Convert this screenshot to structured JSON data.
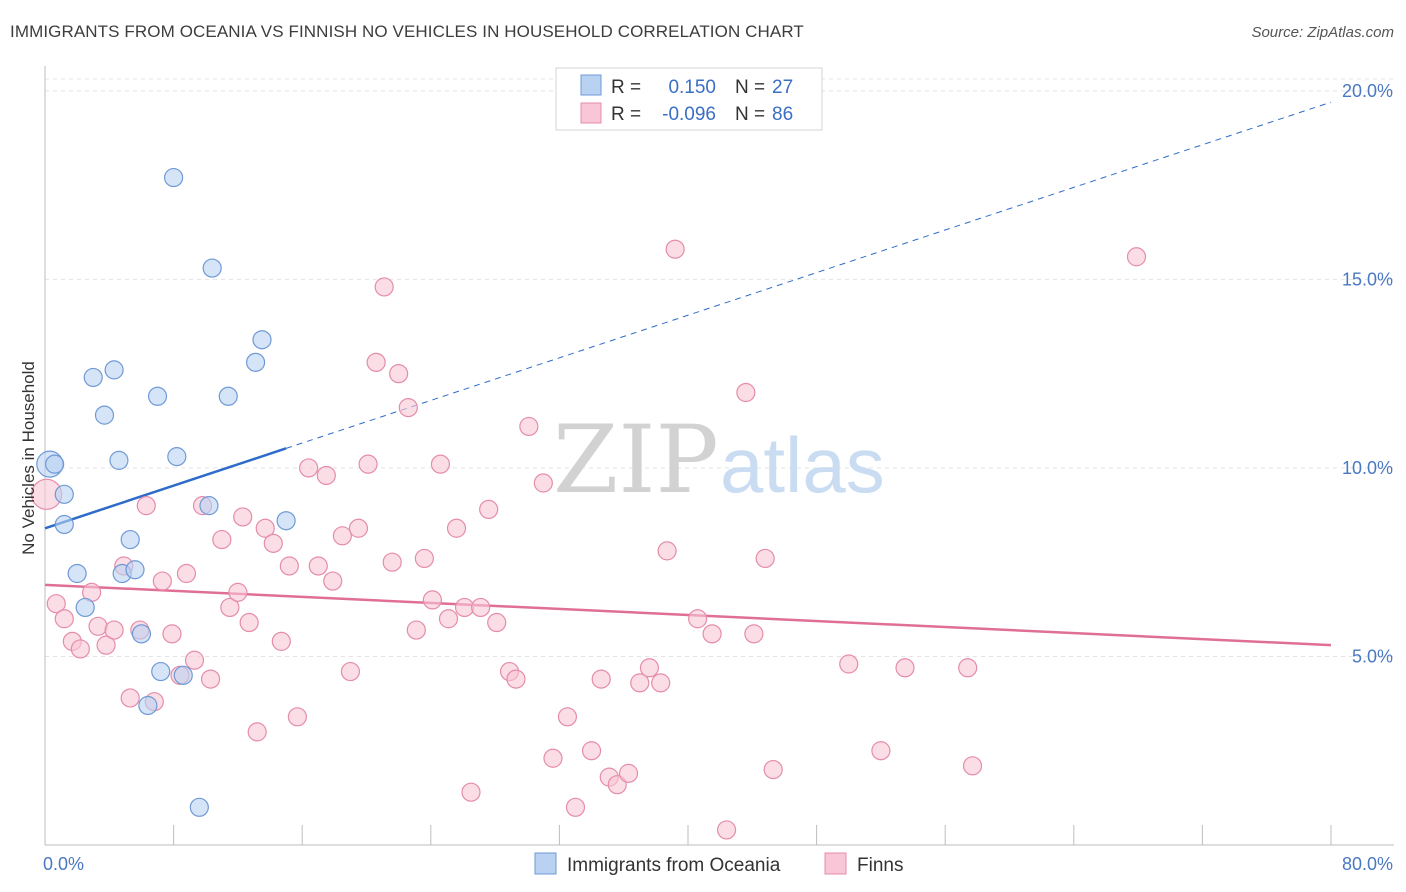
{
  "title": "IMMIGRANTS FROM OCEANIA VS FINNISH NO VEHICLES IN HOUSEHOLD CORRELATION CHART",
  "source": "Source: ZipAtlas.com",
  "watermark": {
    "zip": "ZIP",
    "atlas": "atlas"
  },
  "colors": {
    "blue_fill": "#b9d2f2",
    "blue_stroke": "#6f9ad6",
    "blue_line": "#2f6cc9",
    "pink_fill": "#f8c6d6",
    "pink_stroke": "#e58cab",
    "pink_line": "#e06f96",
    "tick_label": "#4a78c2",
    "grid": "#e4e4e4"
  },
  "legend": {
    "rows": [
      {
        "r_label": "R =",
        "r_value": "0.150",
        "n_label": "N =",
        "n_value": "27"
      },
      {
        "r_label": "R =",
        "r_value": "-0.096",
        "n_label": "N =",
        "n_value": "86"
      }
    ]
  },
  "chart_data": {
    "type": "scatter",
    "xlabel": "",
    "ylabel": "No Vehicles in Household",
    "xlim": [
      0,
      80
    ],
    "ylim": [
      0,
      20.5
    ],
    "x_tick_labels": [
      "0.0%",
      "80.0%"
    ],
    "y_ticks": [
      5,
      10,
      15,
      20
    ],
    "y_tick_labels": [
      "5.0%",
      "10.0%",
      "15.0%",
      "20.0%"
    ],
    "grid": true,
    "legend_position": "top-center",
    "series": [
      {
        "name": "Immigrants from Oceania",
        "color": "blue",
        "R": 0.15,
        "N": 27,
        "trend": {
          "x0": 0,
          "y0": 8.4,
          "x1": 80,
          "y1": 19.7,
          "solid_until_x": 15
        },
        "points": [
          [
            0.3,
            10.1,
            13
          ],
          [
            0.6,
            10.1,
            9
          ],
          [
            1.2,
            9.3,
            9
          ],
          [
            1.2,
            8.5,
            9
          ],
          [
            2.0,
            7.2,
            9
          ],
          [
            2.5,
            6.3,
            9
          ],
          [
            3.0,
            12.4,
            9
          ],
          [
            3.7,
            11.4,
            9
          ],
          [
            4.3,
            12.6,
            9
          ],
          [
            4.6,
            10.2,
            9
          ],
          [
            4.8,
            7.2,
            9
          ],
          [
            5.3,
            8.1,
            9
          ],
          [
            5.6,
            7.3,
            9
          ],
          [
            6.0,
            5.6,
            9
          ],
          [
            6.4,
            3.7,
            9
          ],
          [
            7.0,
            11.9,
            9
          ],
          [
            7.2,
            4.6,
            9
          ],
          [
            8.0,
            17.7,
            9
          ],
          [
            8.2,
            10.3,
            9
          ],
          [
            8.6,
            4.5,
            9
          ],
          [
            9.6,
            1.0,
            9
          ],
          [
            10.2,
            9.0,
            9
          ],
          [
            10.4,
            15.3,
            9
          ],
          [
            11.4,
            11.9,
            9
          ],
          [
            13.1,
            12.8,
            9
          ],
          [
            13.5,
            13.4,
            9
          ],
          [
            15.0,
            8.6,
            9
          ]
        ]
      },
      {
        "name": "Finns",
        "color": "pink",
        "R": -0.096,
        "N": 86,
        "trend": {
          "x0": 0,
          "y0": 6.9,
          "x1": 80,
          "y1": 5.3
        },
        "points": [
          [
            0.1,
            9.3,
            15
          ],
          [
            0.7,
            6.4,
            9
          ],
          [
            1.2,
            6.0,
            9
          ],
          [
            1.7,
            5.4,
            9
          ],
          [
            2.2,
            5.2,
            9
          ],
          [
            2.9,
            6.7,
            9
          ],
          [
            3.3,
            5.8,
            9
          ],
          [
            3.8,
            5.3,
            9
          ],
          [
            4.3,
            5.7,
            9
          ],
          [
            4.9,
            7.4,
            9
          ],
          [
            5.3,
            3.9,
            9
          ],
          [
            5.9,
            5.7,
            9
          ],
          [
            6.3,
            9.0,
            9
          ],
          [
            6.8,
            3.8,
            9
          ],
          [
            7.3,
            7.0,
            9
          ],
          [
            7.9,
            5.6,
            9
          ],
          [
            8.4,
            4.5,
            9
          ],
          [
            8.8,
            7.2,
            9
          ],
          [
            9.3,
            4.9,
            9
          ],
          [
            9.8,
            9.0,
            9
          ],
          [
            10.3,
            4.4,
            9
          ],
          [
            11.0,
            8.1,
            9
          ],
          [
            11.5,
            6.3,
            9
          ],
          [
            12.0,
            6.7,
            9
          ],
          [
            12.3,
            8.7,
            9
          ],
          [
            12.7,
            5.9,
            9
          ],
          [
            13.2,
            3.0,
            9
          ],
          [
            13.7,
            8.4,
            9
          ],
          [
            14.2,
            8.0,
            9
          ],
          [
            14.7,
            5.4,
            9
          ],
          [
            15.2,
            7.4,
            9
          ],
          [
            15.7,
            3.4,
            9
          ],
          [
            16.4,
            10.0,
            9
          ],
          [
            17.0,
            7.4,
            9
          ],
          [
            17.5,
            9.8,
            9
          ],
          [
            17.9,
            7.0,
            9
          ],
          [
            18.5,
            8.2,
            9
          ],
          [
            19.0,
            4.6,
            9
          ],
          [
            19.5,
            8.4,
            9
          ],
          [
            20.1,
            10.1,
            9
          ],
          [
            20.6,
            12.8,
            9
          ],
          [
            21.1,
            14.8,
            9
          ],
          [
            21.6,
            7.5,
            9
          ],
          [
            22.0,
            12.5,
            9
          ],
          [
            22.6,
            11.6,
            9
          ],
          [
            23.1,
            5.7,
            9
          ],
          [
            23.6,
            7.6,
            9
          ],
          [
            24.1,
            6.5,
            9
          ],
          [
            24.6,
            10.1,
            9
          ],
          [
            25.1,
            6.0,
            9
          ],
          [
            25.6,
            8.4,
            9
          ],
          [
            26.1,
            6.3,
            9
          ],
          [
            26.5,
            1.4,
            9
          ],
          [
            27.1,
            6.3,
            9
          ],
          [
            27.6,
            8.9,
            9
          ],
          [
            28.1,
            5.9,
            9
          ],
          [
            28.9,
            4.6,
            9
          ],
          [
            29.3,
            4.4,
            9
          ],
          [
            30.1,
            11.1,
            9
          ],
          [
            31.0,
            9.6,
            9
          ],
          [
            31.6,
            2.3,
            9
          ],
          [
            32.5,
            3.4,
            9
          ],
          [
            33.0,
            1.0,
            9
          ],
          [
            34.0,
            2.5,
            9
          ],
          [
            34.6,
            4.4,
            9
          ],
          [
            35.1,
            1.8,
            9
          ],
          [
            35.6,
            1.6,
            9
          ],
          [
            36.3,
            1.9,
            9
          ],
          [
            37.0,
            4.3,
            9
          ],
          [
            37.6,
            4.7,
            9
          ],
          [
            38.3,
            4.3,
            9
          ],
          [
            38.7,
            7.8,
            9
          ],
          [
            39.2,
            15.8,
            9
          ],
          [
            40.6,
            6.0,
            9
          ],
          [
            41.5,
            5.6,
            9
          ],
          [
            42.4,
            0.4,
            9
          ],
          [
            43.6,
            12.0,
            9
          ],
          [
            44.1,
            5.6,
            9
          ],
          [
            44.8,
            7.6,
            9
          ],
          [
            45.3,
            2.0,
            9
          ],
          [
            50.0,
            4.8,
            9
          ],
          [
            52.0,
            2.5,
            9
          ],
          [
            53.5,
            4.7,
            9
          ],
          [
            57.4,
            4.7,
            9
          ],
          [
            57.7,
            2.1,
            9
          ],
          [
            67.9,
            15.6,
            9
          ]
        ]
      }
    ]
  }
}
